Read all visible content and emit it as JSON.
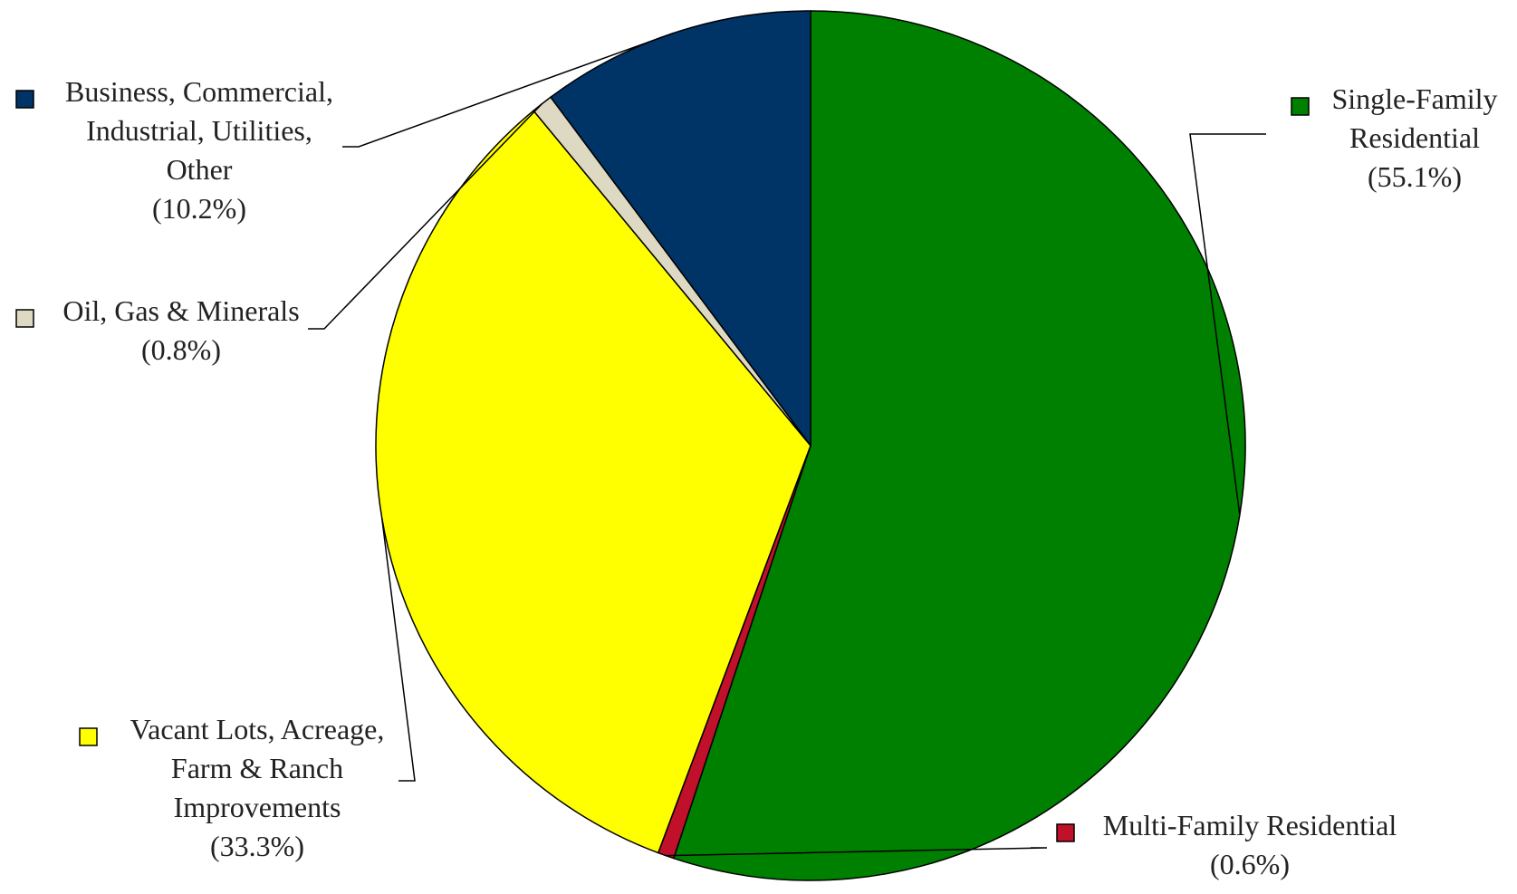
{
  "chart_data": {
    "type": "pie",
    "title": "",
    "slices": [
      {
        "label": "Single-Family Residential",
        "lines": [
          "Single-Family",
          "Residential"
        ],
        "pct_label": "(55.1%)",
        "value": 55.1,
        "color": "#008000"
      },
      {
        "label": "Multi-Family Residential",
        "lines": [
          "Multi-Family Residential"
        ],
        "pct_label": "(0.6%)",
        "value": 0.6,
        "color": "#C0102A"
      },
      {
        "label": "Vacant Lots, Acreage, Farm & Ranch Improvements",
        "lines": [
          "Vacant Lots, Acreage,",
          "Farm & Ranch",
          "Improvements"
        ],
        "pct_label": "(33.3%)",
        "value": 33.3,
        "color": "#FFFF00"
      },
      {
        "label": "Oil, Gas & Minerals",
        "lines": [
          "Oil, Gas & Minerals"
        ],
        "pct_label": "(0.8%)",
        "value": 0.8,
        "color": "#DDD9C3"
      },
      {
        "label": "Business, Commercial, Industrial, Utilities, Other",
        "lines": [
          "Business, Commercial,",
          "Industrial, Utilities,",
          "Other"
        ],
        "pct_label": "(10.2%)",
        "value": 10.2,
        "color": "#003366"
      }
    ],
    "start_angle_deg": 0,
    "direction": "clockwise",
    "legend": "labels beside slices with leader lines"
  }
}
